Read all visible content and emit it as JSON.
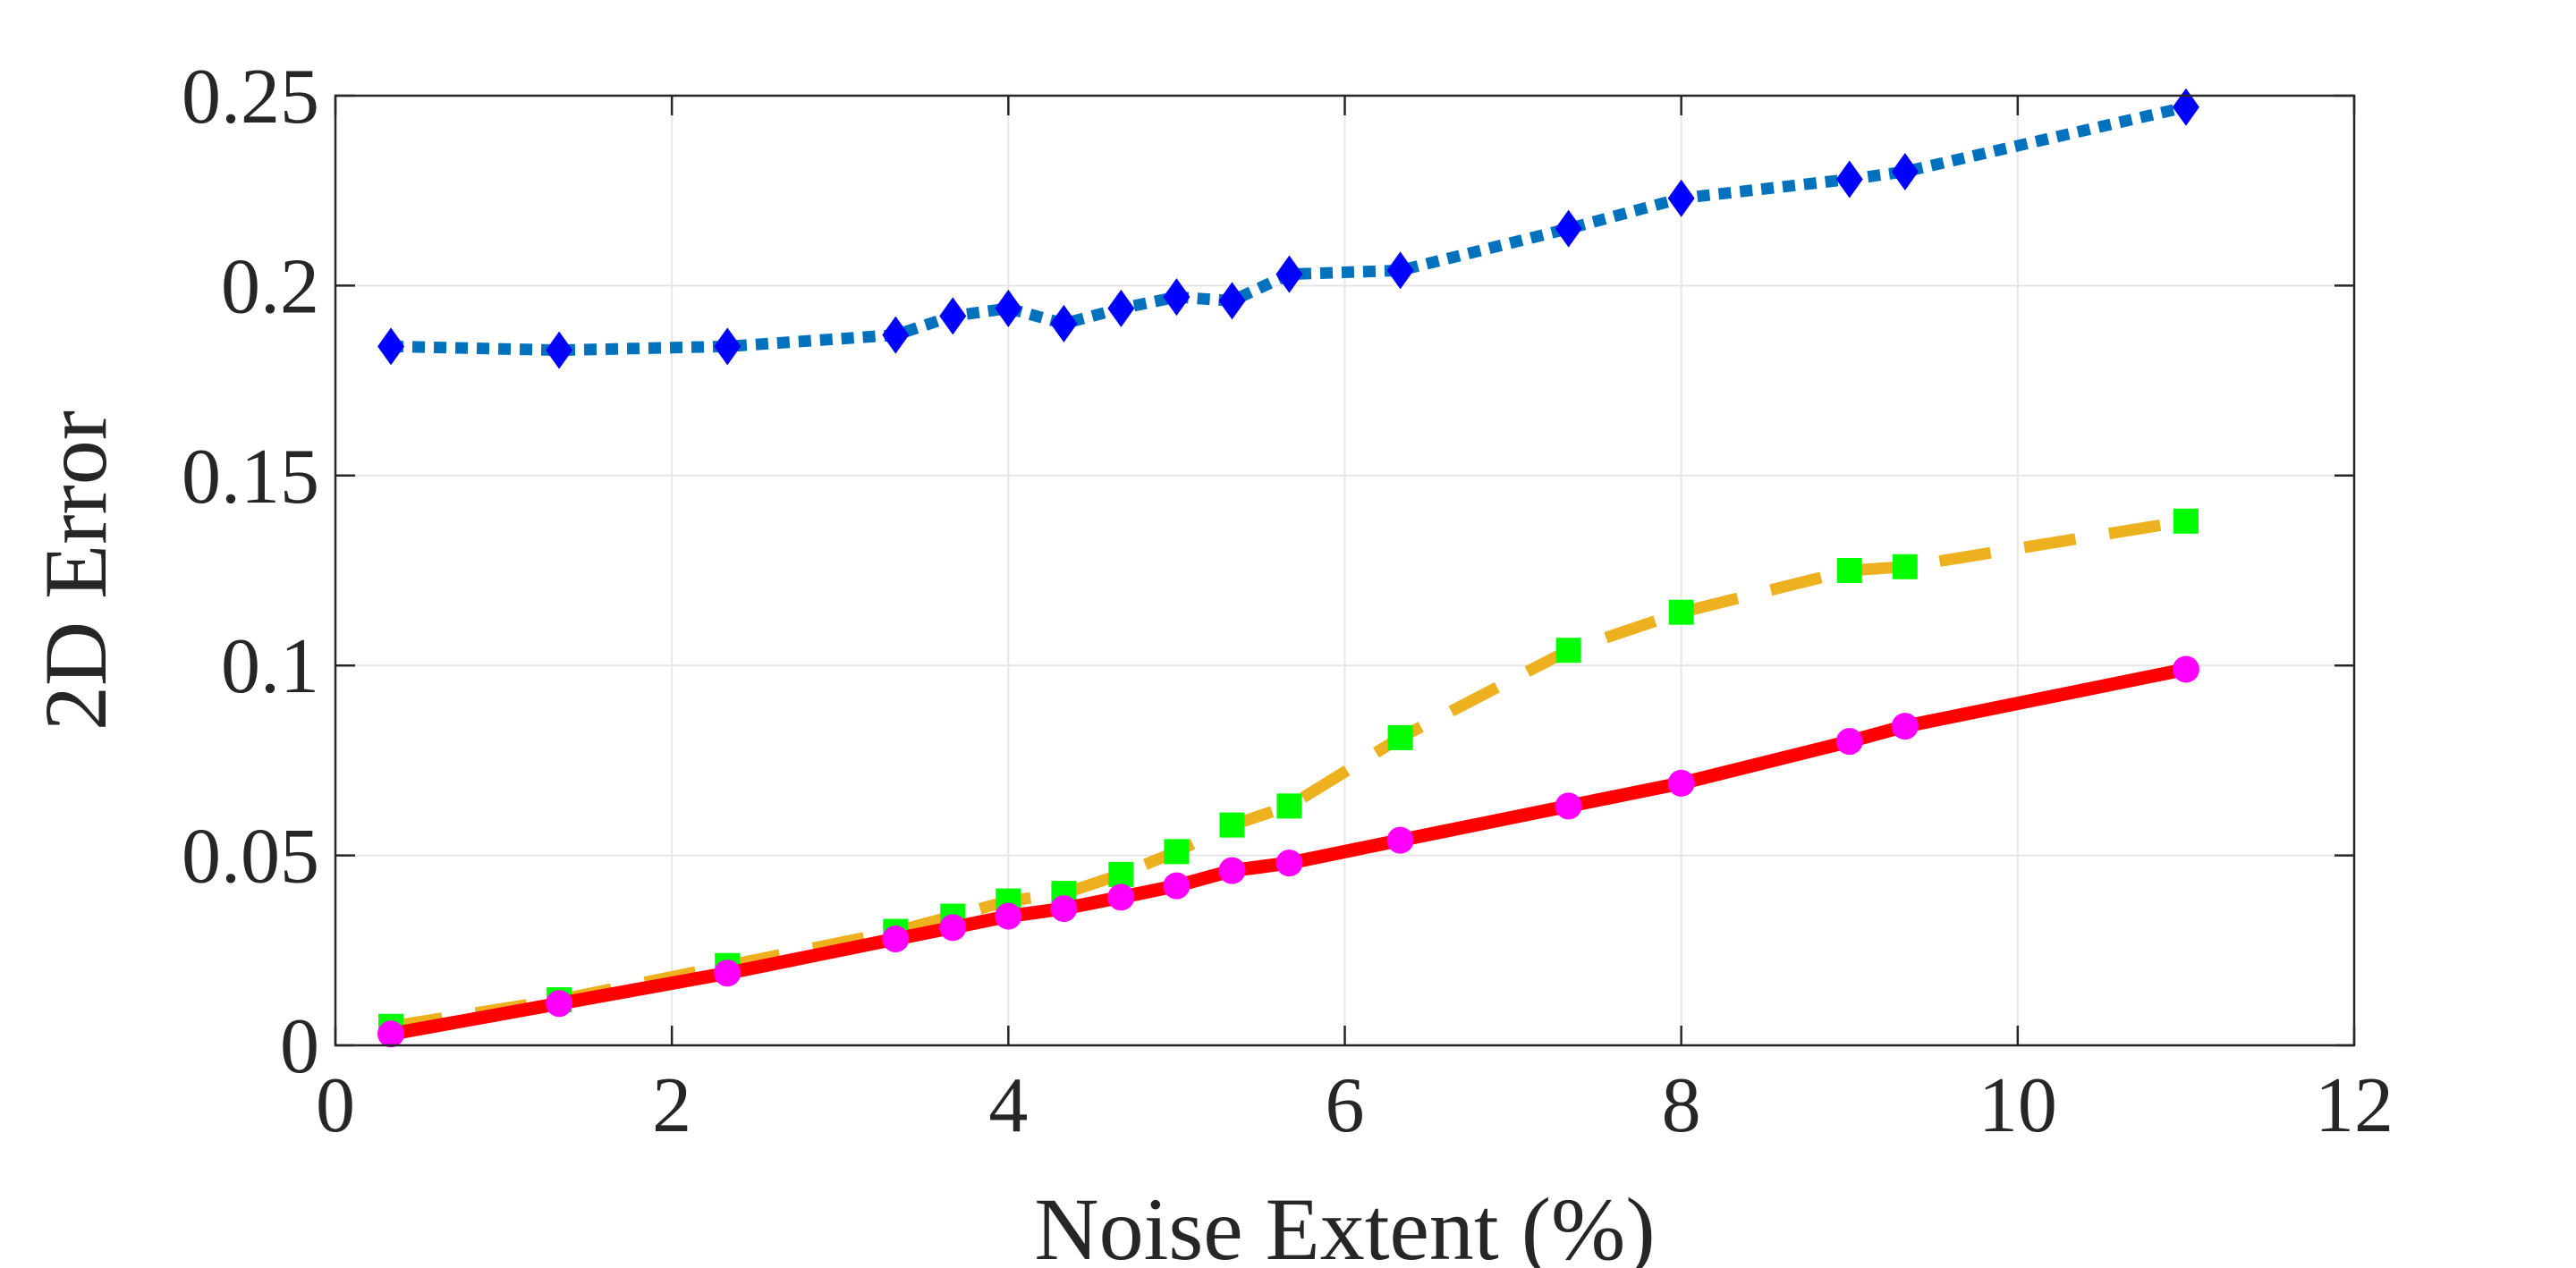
{
  "chart_data": {
    "type": "line",
    "title": "",
    "xlabel": "Noise Extent (%)",
    "ylabel": "2D Error",
    "xlim": [
      0,
      12
    ],
    "ylim": [
      0,
      0.25
    ],
    "xticks": [
      "0",
      "2",
      "4",
      "6",
      "8",
      "10",
      "12"
    ],
    "yticks": [
      "0",
      "0.05",
      "0.1",
      "0.15",
      "0.2",
      "0.25"
    ],
    "grid": true,
    "legend": "none",
    "x": [
      0.33,
      1.33,
      2.33,
      3.33,
      3.67,
      4.0,
      4.33,
      4.67,
      5.0,
      5.33,
      5.67,
      6.33,
      7.33,
      8.0,
      9.0,
      9.33,
      11.0
    ],
    "series": [
      {
        "line_color": "#0072BD",
        "marker_color": "#0000FF",
        "line_style": "dotted",
        "marker": "diamond",
        "values": [
          0.184,
          0.183,
          0.184,
          0.187,
          0.192,
          0.194,
          0.19,
          0.194,
          0.197,
          0.196,
          0.203,
          0.204,
          0.215,
          0.223,
          0.228,
          0.23,
          0.247
        ]
      },
      {
        "line_color": "#EDB120",
        "marker_color": "#00FF00",
        "line_style": "dashed",
        "marker": "square",
        "values": [
          0.005,
          0.012,
          0.021,
          0.03,
          0.034,
          0.038,
          0.04,
          0.045,
          0.051,
          0.058,
          0.063,
          0.081,
          0.104,
          0.114,
          0.125,
          0.126,
          0.138
        ]
      },
      {
        "line_color": "#FF0000",
        "marker_color": "#FF00FF",
        "line_style": "solid",
        "marker": "circle",
        "values": [
          0.003,
          0.011,
          0.019,
          0.028,
          0.031,
          0.034,
          0.036,
          0.039,
          0.042,
          0.046,
          0.048,
          0.054,
          0.063,
          0.069,
          0.08,
          0.084,
          0.099
        ]
      }
    ]
  }
}
